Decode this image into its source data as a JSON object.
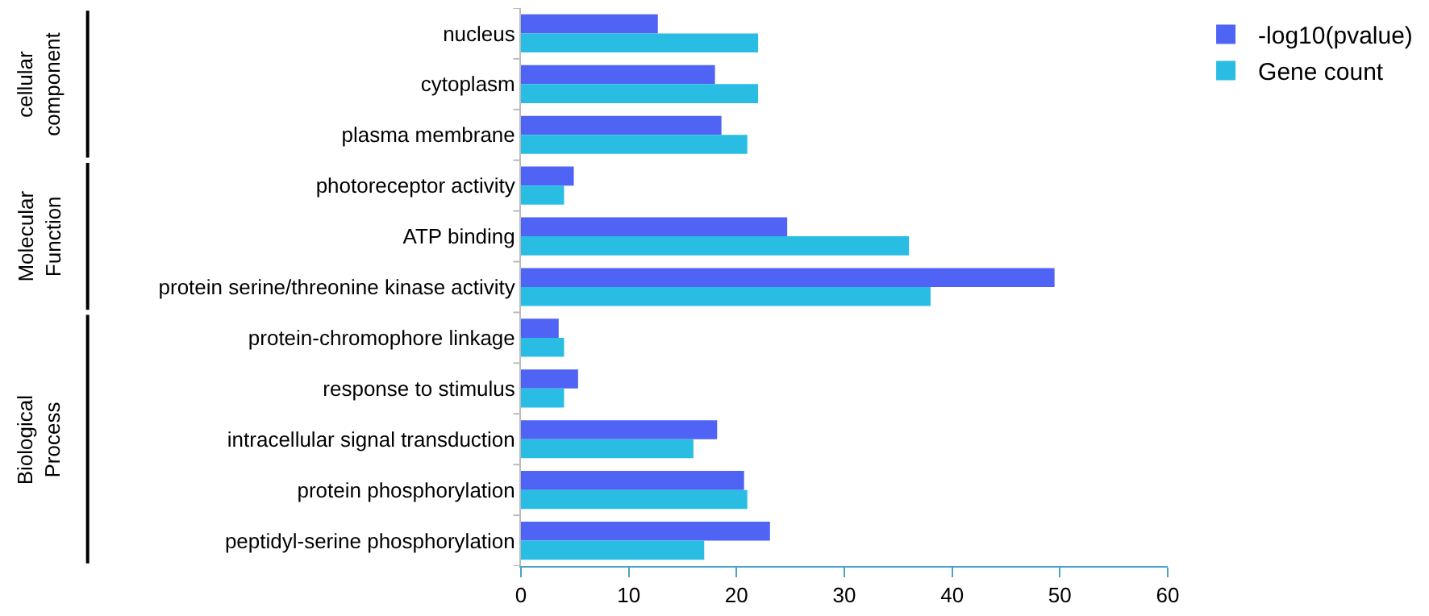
{
  "chart_data": {
    "type": "bar",
    "orientation": "horizontal",
    "categories": [
      "nucleus",
      "cytoplasm",
      "plasma membrane",
      "photoreceptor activity",
      "ATP binding",
      "protein serine/threonine kinase activity",
      "protein-chromophore linkage",
      "response to stimulus",
      "intracellular signal transduction",
      "protein phosphorylation",
      "peptidyl-serine phosphorylation"
    ],
    "series": [
      {
        "name": "-log10(pvalue)",
        "color": "#4f63f5",
        "values": [
          12.7,
          18.0,
          18.6,
          4.9,
          24.7,
          49.5,
          3.5,
          5.3,
          18.2,
          20.7,
          23.1
        ]
      },
      {
        "name": "Gene count",
        "color": "#29bde3",
        "values": [
          22,
          22,
          21,
          4,
          36,
          38,
          4,
          4,
          16,
          21,
          17
        ]
      }
    ],
    "xlim": [
      0,
      60
    ],
    "xticks": [
      0,
      10,
      20,
      30,
      40,
      50,
      60
    ],
    "legend": "top right",
    "annotations": [
      "cellular\ncomponent",
      "Molecular\nFunction",
      "Biological\nProcess"
    ]
  }
}
